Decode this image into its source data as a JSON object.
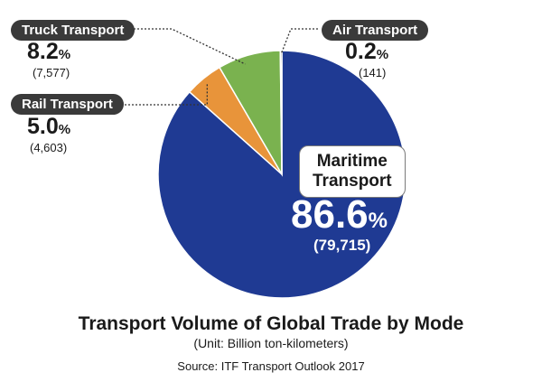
{
  "chart_data": {
    "type": "pie",
    "title": "Transport Volume of Global Trade by Mode",
    "subtitle": "(Unit: Billion ton-kilometers)",
    "source": "Source: ITF Transport Outlook 2017",
    "unit_symbol": "%",
    "slices": [
      {
        "label": "Maritime Transport",
        "label_lines": [
          "Maritime",
          "Transport"
        ],
        "percent": 86.6,
        "percent_text": "86.6",
        "value": 79715,
        "value_text": "(79,715)",
        "color": "#1f3a93"
      },
      {
        "label": "Rail Transport",
        "percent": 5.0,
        "percent_text": "5.0",
        "value": 4603,
        "value_text": "(4,603)",
        "color": "#e8943a"
      },
      {
        "label": "Truck Transport",
        "percent": 8.2,
        "percent_text": "8.2",
        "value": 7577,
        "value_text": "(7,577)",
        "color": "#7ab24f"
      },
      {
        "label": "Air Transport",
        "percent": 0.2,
        "percent_text": "0.2",
        "value": 141,
        "value_text": "(141)",
        "color": "#2a2a2a"
      }
    ]
  }
}
